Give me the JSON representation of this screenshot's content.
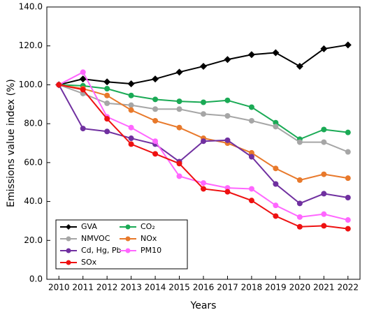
{
  "chart_data": {
    "type": "line",
    "y_label": "Emissions value index (%)",
    "x_label": "Years",
    "categories": [
      "2010",
      "2011",
      "2012",
      "2013",
      "2014",
      "2015",
      "2016",
      "2017",
      "2018",
      "2019",
      "2020",
      "2021",
      "2022"
    ],
    "ylim": [
      0,
      140
    ],
    "yticks": [
      {
        "value": 0,
        "label": "0.0"
      },
      {
        "value": 20,
        "label": "20.0"
      },
      {
        "value": 40,
        "label": "40.0"
      },
      {
        "value": 60,
        "label": "60.0"
      },
      {
        "value": 80,
        "label": "80.0"
      },
      {
        "value": 100,
        "label": "100.0"
      },
      {
        "value": 120,
        "label": "120.0"
      },
      {
        "value": 140,
        "label": "140.0"
      }
    ],
    "grid": false,
    "legend": "lower left",
    "series": [
      {
        "name": "GVA",
        "color": "#000000",
        "marker": "diamond",
        "values": [
          100,
          103,
          101.5,
          100.5,
          103,
          106.5,
          109.5,
          113,
          115.5,
          116.5,
          109.5,
          118.5,
          120.5
        ]
      },
      {
        "name": "CO₂",
        "color": "#1aaa55",
        "marker": "circle",
        "values": [
          100,
          99.5,
          98,
          94.5,
          92.5,
          91.5,
          91,
          92,
          88.5,
          80.5,
          72,
          77,
          75.5
        ]
      },
      {
        "name": "NMVOC",
        "color": "#a6a6a6",
        "marker": "circle",
        "values": [
          100,
          95.5,
          90.5,
          89.5,
          87.5,
          87.5,
          85,
          84,
          81.5,
          78.5,
          70.5,
          70.5,
          65.5
        ]
      },
      {
        "name": "NOx",
        "color": "#e8792b",
        "marker": "circle",
        "values": [
          100,
          98,
          94.5,
          87,
          81.5,
          78,
          72.5,
          70,
          65,
          57,
          51,
          54,
          52
        ]
      },
      {
        "name": "Cd, Hg, Pb",
        "color": "#7030a0",
        "marker": "circle",
        "values": [
          100,
          77.5,
          76,
          72.5,
          69.5,
          60.5,
          71,
          71.5,
          63,
          49,
          39,
          44,
          42
        ]
      },
      {
        "name": "PM10",
        "color": "#ff66ff",
        "marker": "circle",
        "values": [
          100,
          106.5,
          83.5,
          78,
          71,
          53,
          49.5,
          47,
          46.5,
          38,
          32,
          33.5,
          30.5
        ]
      },
      {
        "name": "SOx",
        "color": "#ee1111",
        "marker": "circle",
        "values": [
          100,
          97.5,
          82.5,
          69.5,
          64.5,
          59.5,
          46.5,
          45,
          40.5,
          32.5,
          27,
          27.5,
          26
        ]
      }
    ]
  }
}
